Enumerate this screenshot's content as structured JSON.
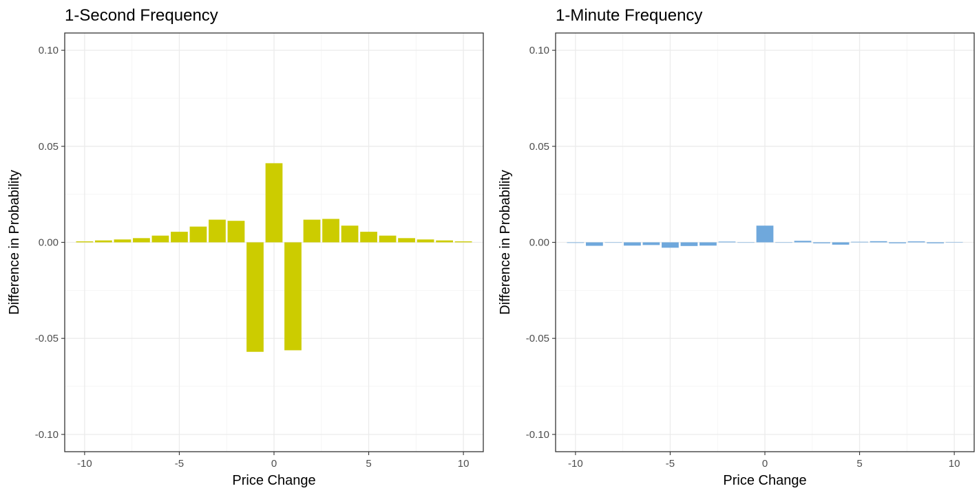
{
  "chart_data": [
    {
      "type": "bar",
      "title": "1-Second Frequency",
      "xlabel": "Price Change",
      "ylabel": "Difference in Probability",
      "xlim": [
        -10.5,
        10.5
      ],
      "ylim": [
        -0.1,
        0.1
      ],
      "x_ticks": [
        -10,
        -5,
        0,
        5,
        10
      ],
      "y_ticks": [
        -0.1,
        -0.05,
        0,
        0.05,
        0.1
      ],
      "x_tick_labels": [
        "-10",
        "-5",
        "0",
        "5",
        "10"
      ],
      "y_tick_labels": [
        "-0.10",
        "-0.05",
        "0.00",
        "0.05",
        "0.10"
      ],
      "grid": true,
      "bar_color": "#cccc00",
      "x": [
        -10,
        -9,
        -8,
        -7,
        -6,
        -5,
        -4,
        -3,
        -2,
        -1,
        0,
        1,
        2,
        3,
        4,
        5,
        6,
        7,
        8,
        9,
        10
      ],
      "values": [
        0.0005,
        0.001,
        0.0015,
        0.0022,
        0.0035,
        0.0055,
        0.0082,
        0.0118,
        0.0112,
        -0.057,
        0.0412,
        -0.0562,
        0.0118,
        0.0122,
        0.0087,
        0.0055,
        0.0035,
        0.0022,
        0.0015,
        0.001,
        0.0005
      ]
    },
    {
      "type": "bar",
      "title": "1-Minute Frequency",
      "xlabel": "Price Change",
      "ylabel": "Difference in Probability",
      "xlim": [
        -10.5,
        10.5
      ],
      "ylim": [
        -0.1,
        0.1
      ],
      "x_ticks": [
        -10,
        -5,
        0,
        5,
        10
      ],
      "y_ticks": [
        -0.1,
        -0.05,
        0,
        0.05,
        0.1
      ],
      "x_tick_labels": [
        "-10",
        "-5",
        "0",
        "5",
        "10"
      ],
      "y_tick_labels": [
        "-0.10",
        "-0.05",
        "0.00",
        "0.05",
        "0.10"
      ],
      "grid": true,
      "bar_color": "#6fa8dc",
      "x": [
        -10,
        -9,
        -8,
        -7,
        -6,
        -5,
        -4,
        -3,
        -2,
        -1,
        0,
        1,
        2,
        3,
        4,
        5,
        6,
        7,
        8,
        9,
        10
      ],
      "values": [
        -0.0003,
        -0.0018,
        0,
        -0.0017,
        -0.0014,
        -0.0028,
        -0.0019,
        -0.0017,
        0.0004,
        -0.0002,
        0.0087,
        -0.0002,
        0.0008,
        -0.0005,
        -0.0012,
        0.0003,
        0.0006,
        -0.0005,
        0.0005,
        -0.0005,
        0.0002
      ]
    }
  ]
}
